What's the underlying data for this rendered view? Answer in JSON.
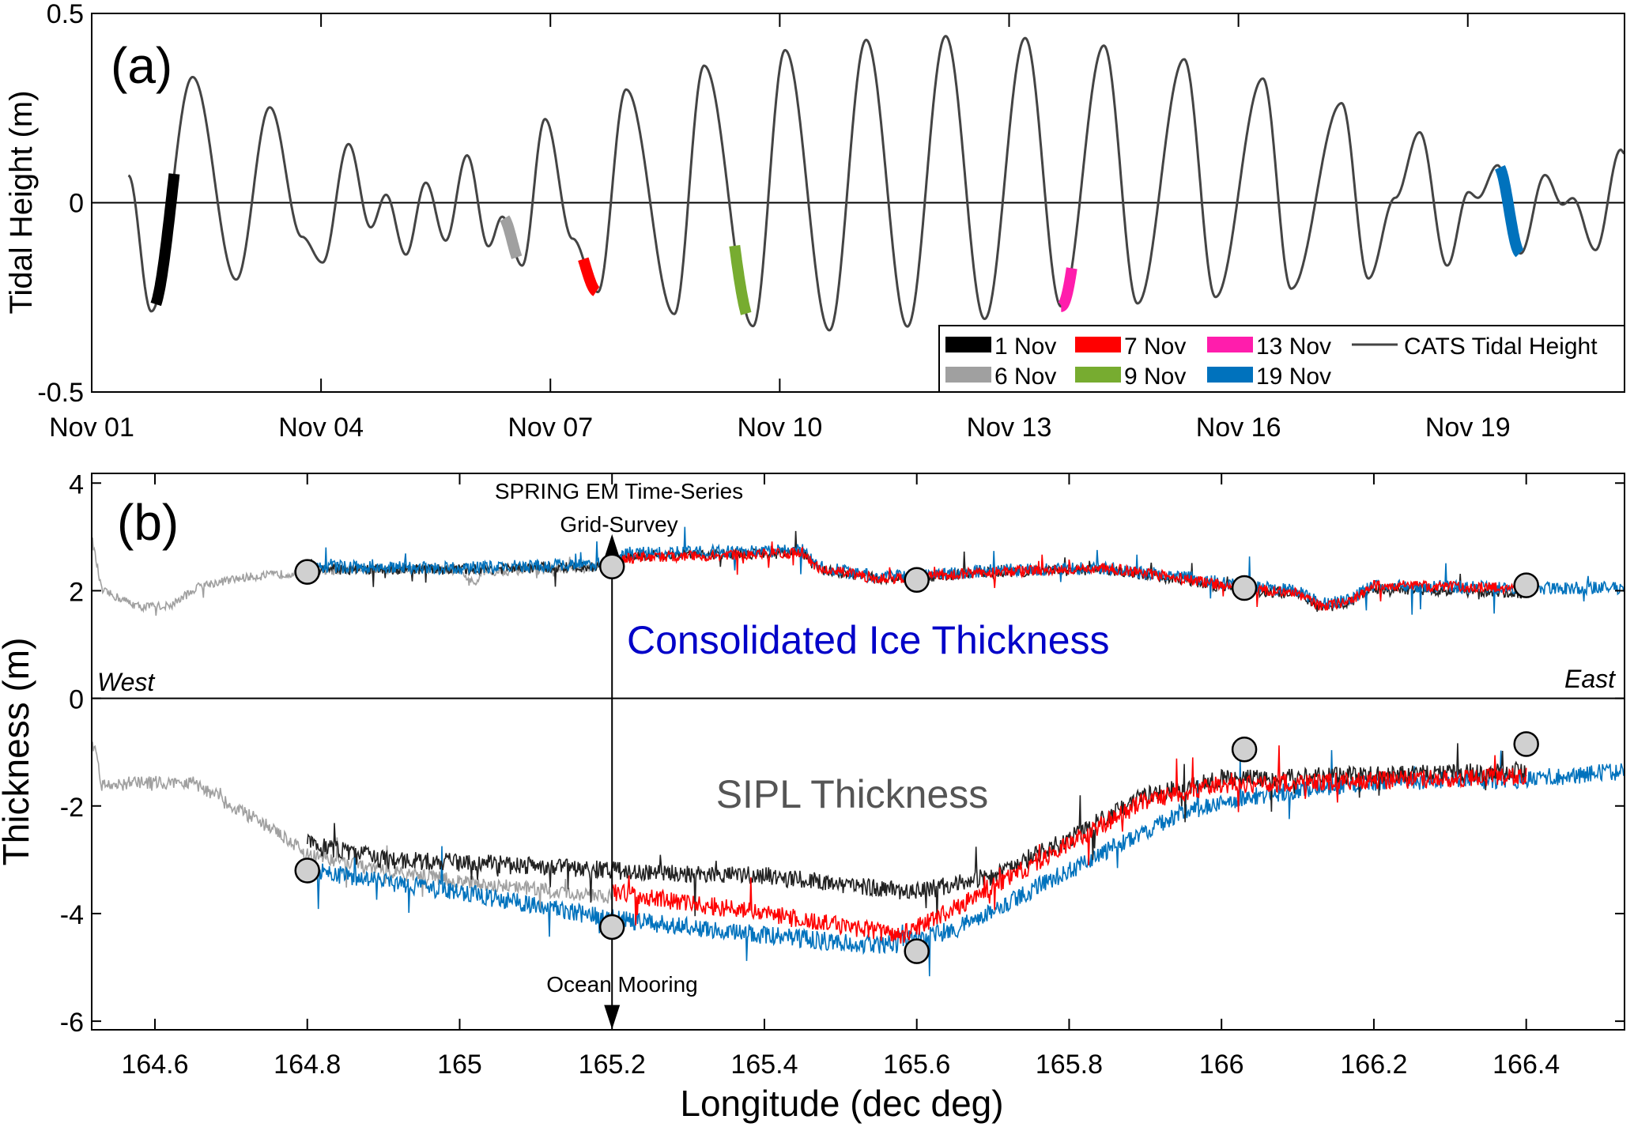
{
  "chart_data": [
    {
      "type": "line",
      "panel_label": "(a)",
      "ylabel": "Tidal Height (m)",
      "xlabel": "",
      "x_unit": "days since Nov 01",
      "xlim": [
        0,
        20.05
      ],
      "ylim": [
        -0.5,
        0.5
      ],
      "yticks": [
        {
          "v": 0.5,
          "label": "0.5"
        },
        {
          "v": 0,
          "label": "0"
        },
        {
          "v": -0.5,
          "label": "-0.5"
        }
      ],
      "xticks": [
        {
          "v": 0,
          "label": "Nov 01"
        },
        {
          "v": 3,
          "label": "Nov 04"
        },
        {
          "v": 6,
          "label": "Nov 07"
        },
        {
          "v": 9,
          "label": "Nov 10"
        },
        {
          "v": 12,
          "label": "Nov 13"
        },
        {
          "v": 15,
          "label": "Nov 16"
        },
        {
          "v": 18,
          "label": "Nov 19"
        }
      ],
      "tide_series": {
        "name": "CATS Tidal Height",
        "color": "#444444",
        "extrema": [
          [
            0.48,
            0.072
          ],
          [
            0.78,
            -0.287
          ],
          [
            1.32,
            0.332
          ],
          [
            1.89,
            -0.203
          ],
          [
            2.33,
            0.252
          ],
          [
            2.75,
            -0.09
          ],
          [
            3.02,
            -0.158
          ],
          [
            3.36,
            0.155
          ],
          [
            3.65,
            -0.065
          ],
          [
            3.85,
            0.021
          ],
          [
            4.11,
            -0.137
          ],
          [
            4.37,
            0.053
          ],
          [
            4.63,
            -0.1
          ],
          [
            4.91,
            0.125
          ],
          [
            5.19,
            -0.115
          ],
          [
            5.37,
            -0.037
          ],
          [
            5.63,
            -0.166
          ],
          [
            5.93,
            0.221
          ],
          [
            6.29,
            -0.095
          ],
          [
            6.62,
            -0.236
          ],
          [
            6.99,
            0.299
          ],
          [
            7.62,
            -0.294
          ],
          [
            8.01,
            0.362
          ],
          [
            8.65,
            -0.326
          ],
          [
            9.07,
            0.403
          ],
          [
            9.65,
            -0.337
          ],
          [
            10.13,
            0.43
          ],
          [
            10.67,
            -0.327
          ],
          [
            11.17,
            0.44
          ],
          [
            11.68,
            -0.307
          ],
          [
            12.21,
            0.435
          ],
          [
            12.68,
            -0.274
          ],
          [
            13.24,
            0.415
          ],
          [
            13.68,
            -0.266
          ],
          [
            14.29,
            0.379
          ],
          [
            14.7,
            -0.249
          ],
          [
            15.32,
            0.328
          ],
          [
            15.69,
            -0.227
          ],
          [
            16.35,
            0.263
          ],
          [
            16.7,
            -0.2
          ],
          [
            17.05,
            0.013
          ],
          [
            17.37,
            0.186
          ],
          [
            17.73,
            -0.166
          ],
          [
            18.01,
            0.028
          ],
          [
            18.13,
            0.013
          ],
          [
            18.39,
            0.099
          ],
          [
            18.69,
            -0.134
          ],
          [
            19.01,
            0.073
          ],
          [
            19.24,
            -0.005
          ],
          [
            19.37,
            0.012
          ],
          [
            19.67,
            -0.125
          ],
          [
            20.0,
            0.14
          ],
          [
            20.05,
            0.13
          ]
        ]
      },
      "survey_segments": [
        {
          "name": "1 Nov",
          "color": "#000000",
          "t": [
            0.84,
            1.08
          ]
        },
        {
          "name": "6 Nov",
          "color": "#a0a0a0",
          "t": [
            5.4,
            5.56
          ]
        },
        {
          "name": "7 Nov",
          "color": "#ff0000",
          "t": [
            6.43,
            6.6
          ]
        },
        {
          "name": "9 Nov",
          "color": "#77ac30",
          "t": [
            8.41,
            8.56
          ]
        },
        {
          "name": "13 Nov",
          "color": "#ff1dac",
          "t": [
            12.68,
            12.82
          ]
        },
        {
          "name": "19 Nov",
          "color": "#0072bd",
          "t": [
            18.42,
            18.68
          ]
        }
      ],
      "legend": {
        "placement": "bottom-right",
        "entries": [
          "1 Nov",
          "7 Nov",
          "13 Nov",
          "CATS Tidal Height",
          "6 Nov",
          "9 Nov",
          "19 Nov"
        ]
      }
    },
    {
      "type": "line",
      "panel_label": "(b)",
      "ylabel": "Thickness (m)",
      "xlabel": "Longitude (dec deg)",
      "xlim": [
        164.517,
        166.529
      ],
      "ylim": [
        -6.16,
        4.18
      ],
      "yticks": [
        {
          "v": 4,
          "label": "4"
        },
        {
          "v": 2,
          "label": "2"
        },
        {
          "v": 0,
          "label": "0"
        },
        {
          "v": -2,
          "label": "-2"
        },
        {
          "v": -4,
          "label": "-4"
        },
        {
          "v": -6,
          "label": "-6"
        }
      ],
      "xticks": [
        {
          "v": 164.6,
          "label": "164.6"
        },
        {
          "v": 164.8,
          "label": "164.8"
        },
        {
          "v": 165.0,
          "label": "165"
        },
        {
          "v": 165.2,
          "label": "165.2"
        },
        {
          "v": 165.4,
          "label": "165.4"
        },
        {
          "v": 165.6,
          "label": "165.6"
        },
        {
          "v": 165.8,
          "label": "165.8"
        },
        {
          "v": 166.0,
          "label": "166"
        },
        {
          "v": 166.2,
          "label": "166.2"
        },
        {
          "v": 166.4,
          "label": "166.4"
        }
      ],
      "annotations": {
        "upper_title": "Consolidated Ice Thickness",
        "upper_color": "#0000c8",
        "lower_title": "SIPL Thickness",
        "lower_color": "#555555",
        "west": "West",
        "east": "East",
        "spring_em": "SPRING EM Time-Series",
        "grid_survey": "Grid-Survey",
        "ocean_mooring": "Ocean Mooring",
        "marker_lon": 165.2
      },
      "series": [
        {
          "name": "6 Nov consolidated",
          "color": "#a0a0a0",
          "noise": 0.08,
          "points": [
            [
              164.517,
              3.0
            ],
            [
              164.53,
              2.0
            ],
            [
              164.58,
              1.7
            ],
            [
              164.62,
              1.72
            ],
            [
              164.66,
              2.1
            ],
            [
              164.72,
              2.25
            ],
            [
              164.8,
              2.35
            ],
            [
              164.9,
              2.4
            ],
            [
              165.0,
              2.38
            ],
            [
              165.02,
              2.1
            ],
            [
              165.03,
              2.35
            ],
            [
              165.2,
              2.42
            ]
          ]
        },
        {
          "name": "1 Nov consolidated",
          "color": "#222222",
          "noise": 0.1,
          "points": [
            [
              164.8,
              2.4
            ],
            [
              165.0,
              2.4
            ],
            [
              165.2,
              2.45
            ],
            [
              165.22,
              2.65
            ],
            [
              165.45,
              2.7
            ],
            [
              165.47,
              2.4
            ],
            [
              165.55,
              2.22
            ],
            [
              165.6,
              2.25
            ],
            [
              165.7,
              2.35
            ],
            [
              165.85,
              2.38
            ],
            [
              165.95,
              2.2
            ],
            [
              166.03,
              2.0
            ],
            [
              166.1,
              1.95
            ],
            [
              166.13,
              1.65
            ],
            [
              166.17,
              1.8
            ],
            [
              166.2,
              2.05
            ],
            [
              166.4,
              1.95
            ]
          ]
        },
        {
          "name": "19 Nov consolidated",
          "color": "#0072bd",
          "noise": 0.12,
          "points": [
            [
              164.8,
              2.45
            ],
            [
              165.0,
              2.42
            ],
            [
              165.2,
              2.5
            ],
            [
              165.22,
              2.7
            ],
            [
              165.45,
              2.75
            ],
            [
              165.47,
              2.45
            ],
            [
              165.55,
              2.25
            ],
            [
              165.6,
              2.28
            ],
            [
              165.7,
              2.38
            ],
            [
              165.85,
              2.42
            ],
            [
              165.95,
              2.25
            ],
            [
              166.03,
              2.1
            ],
            [
              166.1,
              2.0
            ],
            [
              166.13,
              1.75
            ],
            [
              166.17,
              1.85
            ],
            [
              166.2,
              2.1
            ],
            [
              166.4,
              2.05
            ],
            [
              166.529,
              2.05
            ]
          ]
        },
        {
          "name": "7 Nov consolidated",
          "color": "#ff0000",
          "noise": 0.1,
          "points": [
            [
              165.2,
              2.6
            ],
            [
              165.45,
              2.7
            ],
            [
              165.47,
              2.42
            ],
            [
              165.55,
              2.22
            ],
            [
              165.6,
              2.25
            ],
            [
              165.7,
              2.35
            ],
            [
              165.85,
              2.42
            ],
            [
              165.95,
              2.22
            ],
            [
              166.03,
              2.05
            ],
            [
              166.1,
              1.95
            ],
            [
              166.13,
              1.7
            ],
            [
              166.17,
              1.82
            ],
            [
              166.2,
              2.1
            ],
            [
              166.4,
              2.05
            ]
          ]
        },
        {
          "name": "6 Nov SIPL",
          "color": "#a0a0a0",
          "noise": 0.13,
          "points": [
            [
              164.517,
              -0.7
            ],
            [
              164.53,
              -1.6
            ],
            [
              164.65,
              -1.55
            ],
            [
              164.75,
              -2.4
            ],
            [
              164.8,
              -2.9
            ],
            [
              164.9,
              -3.2
            ],
            [
              165.0,
              -3.4
            ],
            [
              165.2,
              -3.7
            ]
          ]
        },
        {
          "name": "19 Nov SIPL",
          "color": "#0072bd",
          "noise": 0.17,
          "points": [
            [
              164.8,
              -3.2
            ],
            [
              165.0,
              -3.6
            ],
            [
              165.2,
              -4.1
            ],
            [
              165.4,
              -4.4
            ],
            [
              165.55,
              -4.6
            ],
            [
              165.65,
              -4.3
            ],
            [
              165.8,
              -3.2
            ],
            [
              165.95,
              -2.1
            ],
            [
              166.05,
              -1.8
            ],
            [
              166.2,
              -1.55
            ],
            [
              166.4,
              -1.5
            ],
            [
              166.529,
              -1.35
            ]
          ]
        },
        {
          "name": "1 Nov SIPL",
          "color": "#222222",
          "noise": 0.17,
          "points": [
            [
              164.8,
              -2.7
            ],
            [
              164.9,
              -3.0
            ],
            [
              165.0,
              -3.05
            ],
            [
              165.2,
              -3.2
            ],
            [
              165.4,
              -3.3
            ],
            [
              165.6,
              -3.6
            ],
            [
              165.7,
              -3.3
            ],
            [
              165.8,
              -2.6
            ],
            [
              165.9,
              -1.8
            ],
            [
              166.0,
              -1.5
            ],
            [
              166.4,
              -1.35
            ]
          ]
        },
        {
          "name": "7 Nov SIPL",
          "color": "#ff0000",
          "noise": 0.17,
          "points": [
            [
              165.2,
              -3.6
            ],
            [
              165.4,
              -4.0
            ],
            [
              165.58,
              -4.4
            ],
            [
              165.65,
              -3.9
            ],
            [
              165.8,
              -2.7
            ],
            [
              165.9,
              -1.9
            ],
            [
              166.0,
              -1.6
            ],
            [
              166.4,
              -1.45
            ]
          ]
        }
      ],
      "circles": [
        [
          164.8,
          2.35
        ],
        [
          165.2,
          2.45
        ],
        [
          165.6,
          2.2
        ],
        [
          166.03,
          2.05
        ],
        [
          166.4,
          2.1
        ],
        [
          164.8,
          -3.2
        ],
        [
          165.2,
          -4.25
        ],
        [
          165.6,
          -4.7
        ],
        [
          166.03,
          -0.95
        ],
        [
          166.4,
          -0.85
        ]
      ]
    }
  ]
}
